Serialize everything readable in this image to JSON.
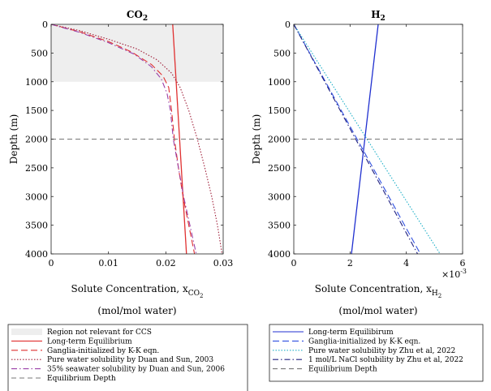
{
  "chart_data": [
    {
      "type": "line",
      "title": "CO2",
      "title_main": "CO",
      "title_sub": "2",
      "ylabel": "Depth (m)",
      "xlabel_main": "Solute Concentration, x",
      "xlabel_sub": "CO",
      "xlabel_sub2": "2",
      "xlabel_line2": "(mol/mol water)",
      "xlim": [
        0,
        0.03
      ],
      "ylim": [
        0,
        4000
      ],
      "y_reversed": true,
      "xticks": [
        0,
        0.01,
        0.02,
        0.03
      ],
      "xtick_labels": [
        "0",
        "0.01",
        "0.02",
        "0.03"
      ],
      "yticks": [
        0,
        500,
        1000,
        1500,
        2000,
        2500,
        3000,
        3500,
        4000
      ],
      "ytick_labels": [
        "0",
        "500",
        "1000",
        "1500",
        "2000",
        "2500",
        "3000",
        "3500",
        "4000"
      ],
      "region": {
        "name": "Region not relevant for CCS",
        "y0": 0,
        "y1": 1000,
        "color": "#eeeeee"
      },
      "series": [
        {
          "name": "Long-term Equilibrium",
          "color": "#e03030",
          "dash": "solid",
          "points": [
            [
              0.0212,
              0
            ],
            [
              0.0236,
              4000
            ]
          ]
        },
        {
          "name": "Ganglia-initialized by K-K eqn.",
          "color": "#e03030",
          "dash": "long",
          "points": [
            [
              0,
              0
            ],
            [
              0.005,
              130
            ],
            [
              0.01,
              300
            ],
            [
              0.014,
              480
            ],
            [
              0.0175,
              700
            ],
            [
              0.0195,
              900
            ],
            [
              0.0205,
              1100
            ],
            [
              0.021,
              1500
            ],
            [
              0.0215,
              2000
            ],
            [
              0.0222,
              2500
            ],
            [
              0.023,
              3000
            ],
            [
              0.024,
              3500
            ],
            [
              0.025,
              4000
            ]
          ]
        },
        {
          "name": "Pure water solubility by Duan and Sun, 2003",
          "color": "#a0203a",
          "dash": "dot",
          "points": [
            [
              0,
              0
            ],
            [
              0.005,
              110
            ],
            [
              0.01,
              260
            ],
            [
              0.015,
              430
            ],
            [
              0.0185,
              620
            ],
            [
              0.021,
              850
            ],
            [
              0.0225,
              1100
            ],
            [
              0.024,
              1500
            ],
            [
              0.0255,
              2000
            ],
            [
              0.0268,
              2500
            ],
            [
              0.028,
              3000
            ],
            [
              0.029,
              3500
            ],
            [
              0.0298,
              4000
            ]
          ]
        },
        {
          "name": "35% seawater solubility by Duan and Sun, 2006",
          "color": "#9a40a8",
          "dash": "dashdot",
          "points": [
            [
              0,
              0
            ],
            [
              0.005,
              140
            ],
            [
              0.01,
              320
            ],
            [
              0.0145,
              520
            ],
            [
              0.0175,
              740
            ],
            [
              0.0192,
              950
            ],
            [
              0.0202,
              1200
            ],
            [
              0.0208,
              1500
            ],
            [
              0.0213,
              2000
            ],
            [
              0.0222,
              2500
            ],
            [
              0.0231,
              3000
            ],
            [
              0.0242,
              3500
            ],
            [
              0.0253,
              4000
            ]
          ]
        },
        {
          "name": "Equilibrium Depth",
          "color": "#777777",
          "dash": "medium",
          "points": [
            [
              0,
              2000
            ],
            [
              0.03,
              2000
            ]
          ]
        }
      ]
    },
    {
      "type": "line",
      "title": "H2",
      "title_main": "H",
      "title_sub": "2",
      "ylabel": "Depth (m)",
      "xlabel_main": "Solute Concentration, x",
      "xlabel_sub": "H",
      "xlabel_sub2": "2",
      "xlabel_line2": "(mol/mol water)",
      "exponent": "×10",
      "exponent_power": "-3",
      "xlim": [
        0,
        6
      ],
      "ylim": [
        0,
        4000
      ],
      "y_reversed": true,
      "xticks": [
        0,
        2,
        4,
        6
      ],
      "xtick_labels": [
        "0",
        "2",
        "4",
        "6"
      ],
      "yticks": [
        0,
        500,
        1000,
        1500,
        2000,
        2500,
        3000,
        3500,
        4000
      ],
      "ytick_labels": [
        "0",
        "500",
        "1000",
        "1500",
        "2000",
        "2500",
        "3000",
        "3500",
        "4000"
      ],
      "series": [
        {
          "name": "Long-term Equilibirum",
          "color": "#2030d0",
          "dash": "solid",
          "points": [
            [
              3.0,
              0
            ],
            [
              2.05,
              4000
            ]
          ]
        },
        {
          "name": "Ganglia-initialized by K-K eqn.",
          "color": "#3050e0",
          "dash": "long",
          "points": [
            [
              0,
              0
            ],
            [
              4.5,
              4000
            ]
          ]
        },
        {
          "name": "Pure water solubility by Zhu et al, 2022",
          "color": "#20b0c8",
          "dash": "dot",
          "points": [
            [
              0,
              0
            ],
            [
              5.2,
              4000
            ]
          ]
        },
        {
          "name": "1 mol/L NaCl solubility by Zhu et al, 2022",
          "color": "#202080",
          "dash": "dashdot",
          "points": [
            [
              0,
              0
            ],
            [
              4.4,
              4000
            ]
          ]
        },
        {
          "name": "Equilibrium Depth",
          "color": "#777777",
          "dash": "medium",
          "points": [
            [
              0,
              2000
            ],
            [
              6,
              2000
            ]
          ]
        }
      ]
    }
  ]
}
